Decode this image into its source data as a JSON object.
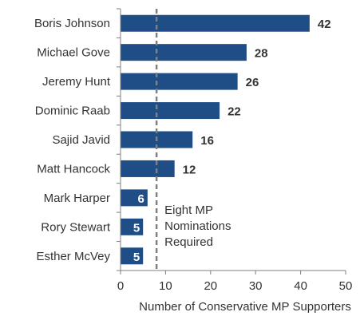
{
  "chart_data": {
    "type": "bar",
    "orientation": "horizontal",
    "categories": [
      "Boris Johnson",
      "Michael Gove",
      "Jeremy Hunt",
      "Dominic Raab",
      "Sajid Javid",
      "Matt Hancock",
      "Mark Harper",
      "Rory Stewart",
      "Esther McVey"
    ],
    "values": [
      42,
      28,
      26,
      22,
      16,
      12,
      6,
      5,
      5
    ],
    "xlabel": "Number of Conservative MP Supporters",
    "ylabel": "",
    "title": "",
    "xlim": [
      0,
      50
    ],
    "xticks": [
      0,
      10,
      20,
      30,
      40,
      50
    ],
    "bar_color": "#1f4e87",
    "grid": false,
    "threshold": {
      "value": 8,
      "style": "dashed",
      "color": "#7f7f7f",
      "label_lines": [
        "Eight MP",
        "Nominations",
        "Required"
      ]
    }
  }
}
